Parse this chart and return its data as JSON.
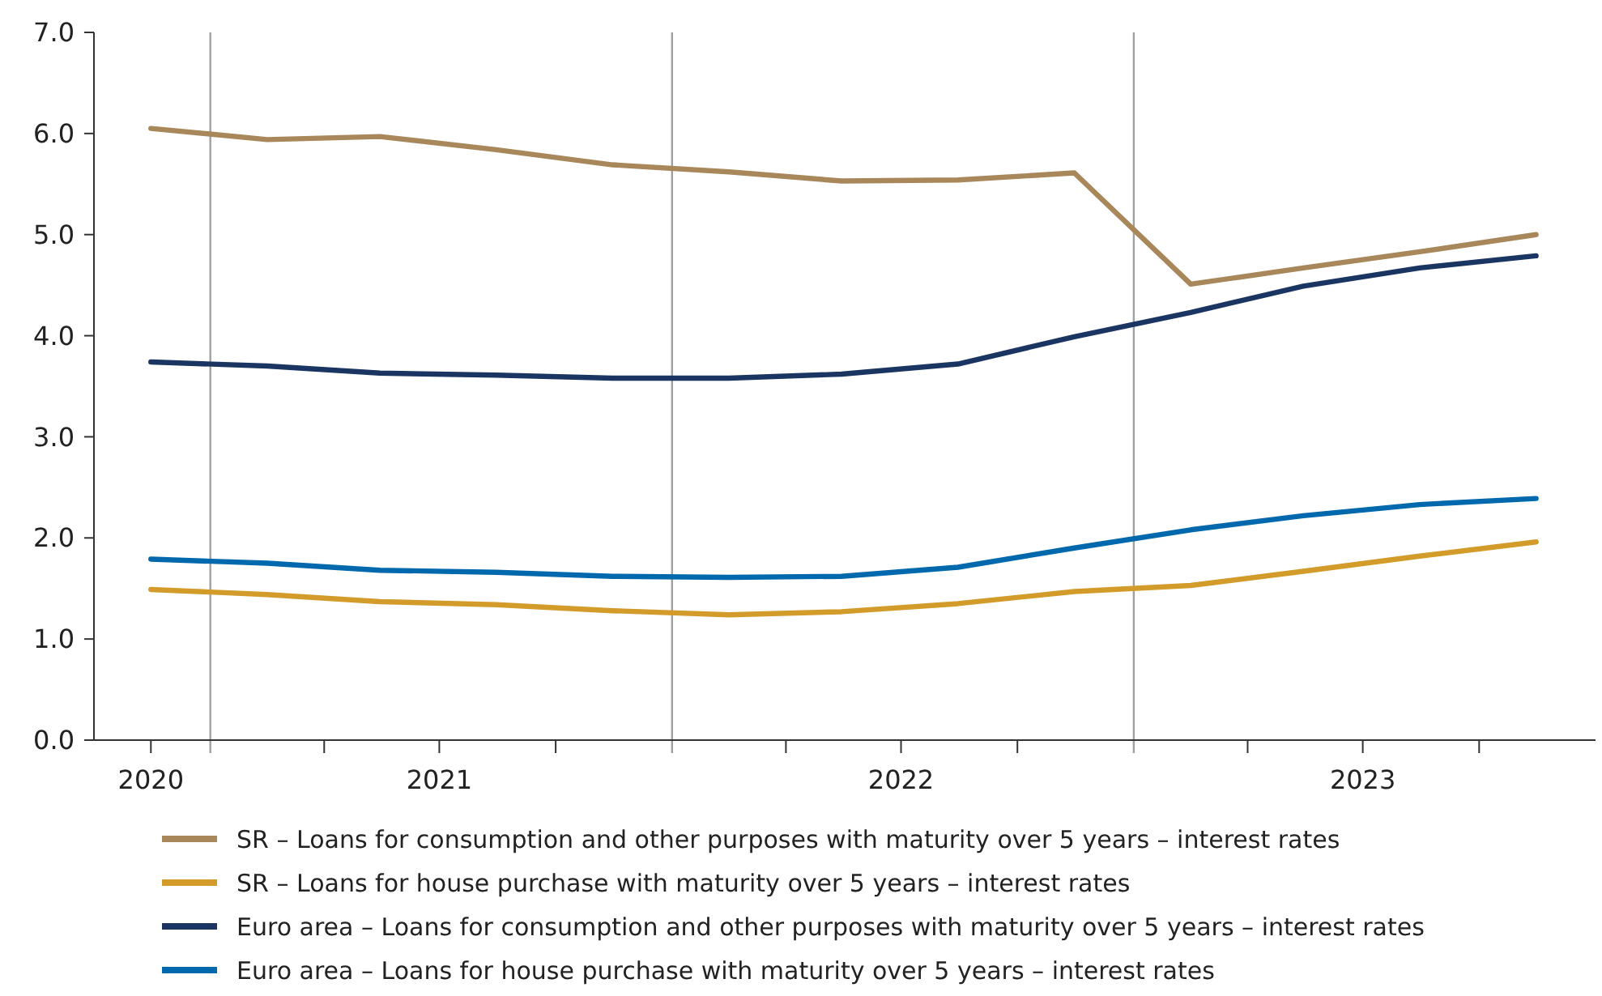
{
  "chart_data": {
    "type": "line",
    "x": [
      "2020-11-15",
      "2021-02-15",
      "2021-05-15",
      "2021-08-15",
      "2021-11-15",
      "2022-02-15",
      "2022-05-15",
      "2022-08-15",
      "2022-11-15",
      "2023-02-15",
      "2023-05-15",
      "2023-08-15",
      "2023-11-15"
    ],
    "series": [
      {
        "name": "SR – Loans for consumption and other purposes with maturity over 5 years – interest rates",
        "color": "#a8875a",
        "values": [
          6.05,
          5.94,
          5.97,
          5.84,
          5.69,
          5.62,
          5.53,
          5.54,
          5.61,
          4.51,
          4.67,
          4.83,
          5.0
        ]
      },
      {
        "name": "SR – Loans for house purchase with maturity over 5 years – interest rates",
        "color": "#d39b2a",
        "values": [
          1.49,
          1.44,
          1.37,
          1.34,
          1.28,
          1.24,
          1.27,
          1.35,
          1.47,
          1.53,
          1.67,
          1.82,
          1.96
        ]
      },
      {
        "name": "Euro area – Loans for consumption and other purposes with maturity over 5 years – interest rates",
        "color": "#1b3562",
        "values": [
          3.74,
          3.7,
          3.63,
          3.61,
          3.58,
          3.58,
          3.62,
          3.72,
          3.99,
          4.23,
          4.49,
          4.67,
          4.79
        ]
      },
      {
        "name": "Euro area – Loans for house purchase with maturity over 5 years – interest rates",
        "color": "#0068ad",
        "values": [
          1.79,
          1.75,
          1.68,
          1.66,
          1.62,
          1.61,
          1.62,
          1.71,
          1.9,
          2.08,
          2.22,
          2.33,
          2.39
        ]
      }
    ],
    "xlim": [
      "2020-10-01",
      "2024-01-01"
    ],
    "xticks": [
      {
        "value": "2020-11-15",
        "label": "2020"
      },
      {
        "value": "2021-04-01",
        "label": null
      },
      {
        "value": "2021-07-01",
        "label": "2021"
      },
      {
        "value": "2021-10-01",
        "label": null
      },
      {
        "value": "2022-04-01",
        "label": null
      },
      {
        "value": "2022-07-01",
        "label": "2022"
      },
      {
        "value": "2022-10-01",
        "label": null
      },
      {
        "value": "2023-04-01",
        "label": null
      },
      {
        "value": "2023-07-01",
        "label": "2023"
      },
      {
        "value": "2023-10-01",
        "label": null
      }
    ],
    "ylim": [
      0,
      7
    ],
    "yticks": [
      {
        "value": 0,
        "label": "0.0"
      },
      {
        "value": 1,
        "label": "1.0"
      },
      {
        "value": 2,
        "label": "2.0"
      },
      {
        "value": 3,
        "label": "3.0"
      },
      {
        "value": 4,
        "label": "4.0"
      },
      {
        "value": 5,
        "label": "5.0"
      },
      {
        "value": 6,
        "label": "6.0"
      },
      {
        "value": 7,
        "label": "7.0"
      }
    ],
    "ref_lines": [
      {
        "axis": "x",
        "value": "2021-01-01",
        "color": "#a0a0a0"
      },
      {
        "axis": "x",
        "value": "2022-01-01",
        "color": "#a0a0a0"
      },
      {
        "axis": "x",
        "value": "2023-01-01",
        "color": "#a0a0a0"
      }
    ],
    "grid": false,
    "legend": "bottom",
    "marker": "none",
    "line_style": "solid"
  }
}
